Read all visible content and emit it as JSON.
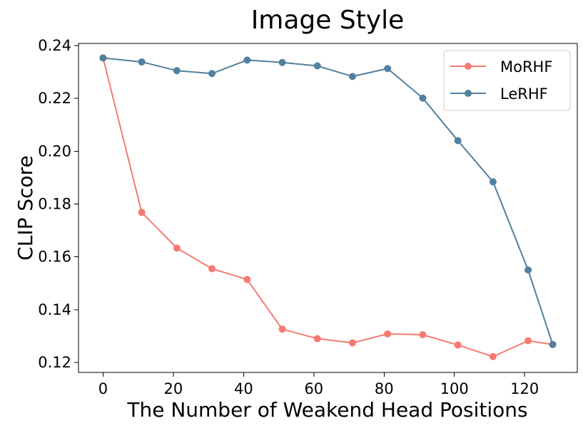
{
  "chart_data": {
    "type": "line",
    "title": "Image Style",
    "xlabel": "The Number of Weakend Head Positions",
    "ylabel": "CLIP Score",
    "x": [
      0,
      11,
      21,
      31,
      41,
      51,
      61,
      71,
      81,
      91,
      101,
      111,
      121,
      128
    ],
    "xlim": [
      -7,
      135
    ],
    "ylim": [
      0.1162,
      0.2408
    ],
    "xticks": [
      0,
      20,
      40,
      60,
      80,
      100,
      120
    ],
    "xtick_labels": [
      "0",
      "20",
      "40",
      "60",
      "80",
      "100",
      "120"
    ],
    "yticks": [
      0.12,
      0.14,
      0.16,
      0.18,
      0.2,
      0.22,
      0.24
    ],
    "ytick_labels": [
      "0.12",
      "0.14",
      "0.16",
      "0.18",
      "0.20",
      "0.22",
      "0.24"
    ],
    "grid": false,
    "legend_position": "top-right",
    "series": [
      {
        "name": "MoRHF",
        "color": "#f57a72",
        "marker": "circle",
        "values": [
          0.2353,
          0.1768,
          0.1633,
          0.1555,
          0.1514,
          0.1326,
          0.129,
          0.1274,
          0.1308,
          0.1305,
          0.1266,
          0.1222,
          0.1282,
          0.1268
        ]
      },
      {
        "name": "LeRHF",
        "color": "#52809f",
        "marker": "circle",
        "values": [
          0.2353,
          0.2338,
          0.2305,
          0.2294,
          0.2345,
          0.2336,
          0.2323,
          0.2283,
          0.2313,
          0.2201,
          0.204,
          0.1884,
          0.155,
          0.1268
        ]
      }
    ]
  }
}
